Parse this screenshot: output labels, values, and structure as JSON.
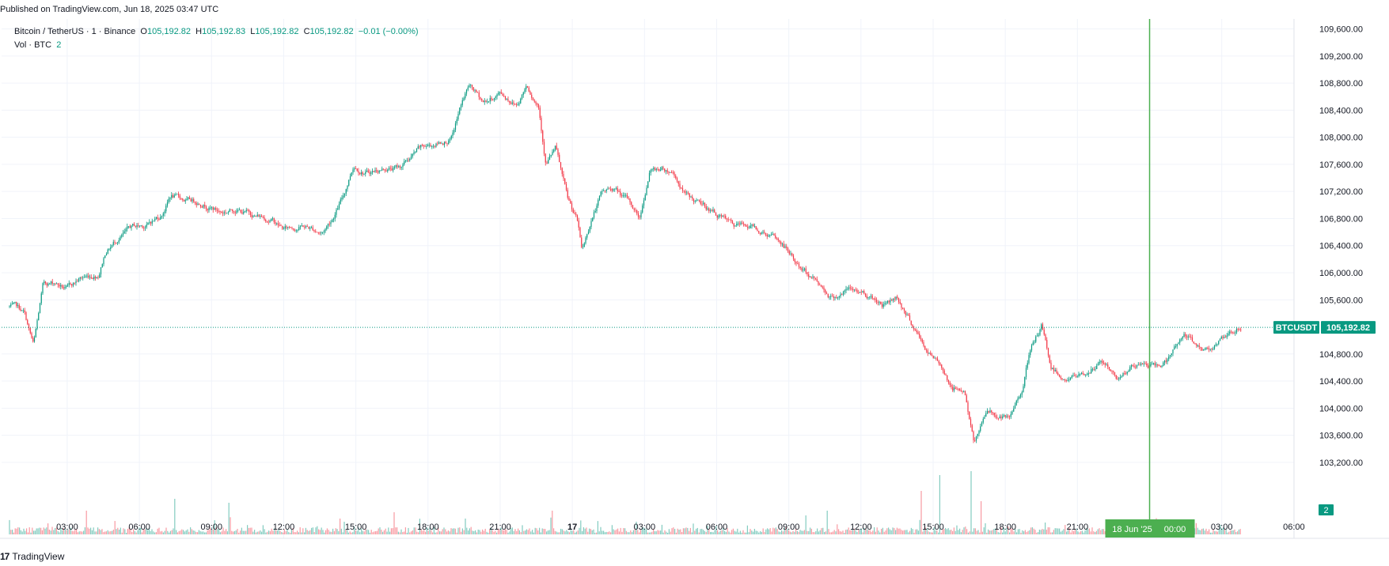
{
  "header": {
    "published": "Published on TradingView.com, Jun 18, 2025 03:47 UTC"
  },
  "legend": {
    "symbol": "Bitcoin / TetherUS · 1 · Binance",
    "o_label": "O",
    "o": "105,192.82",
    "h_label": "H",
    "h": "105,192.83",
    "l_label": "L",
    "l": "105,192.82",
    "c_label": "C",
    "c": "105,192.82",
    "change": "−0.01 (−0.00%)",
    "vol_label": "Vol · BTC",
    "vol": "2"
  },
  "footer": {
    "logo_text": "TradingView",
    "logo_mark": "17"
  },
  "colors": {
    "up": "#089981",
    "down": "#f23645",
    "marker": "#4caf50",
    "grid": "#f0f3fa",
    "text": "#131722"
  },
  "chart_data": {
    "type": "candlestick",
    "symbol_label": "BTCUSDT",
    "last_price": 105192.82,
    "last_price_label": "105,192.82",
    "volume_label": "2",
    "ylim": [
      103000,
      109700
    ],
    "y_ticks": [
      "109,600.00",
      "109,200.00",
      "108,800.00",
      "108,400.00",
      "108,000.00",
      "107,600.00",
      "107,200.00",
      "106,800.00",
      "106,400.00",
      "106,000.00",
      "105,600.00",
      "104,800.00",
      "104,400.00",
      "104,000.00",
      "103,600.00",
      "103,200.00"
    ],
    "x_ticks": [
      {
        "label": "03:00",
        "h": 3
      },
      {
        "label": "06:00",
        "h": 6
      },
      {
        "label": "09:00",
        "h": 9
      },
      {
        "label": "12:00",
        "h": 12
      },
      {
        "label": "15:00",
        "h": 15
      },
      {
        "label": "18:00",
        "h": 18
      },
      {
        "label": "21:00",
        "h": 21
      },
      {
        "label": "17",
        "h": 24
      },
      {
        "label": "03:00",
        "h": 27
      },
      {
        "label": "06:00",
        "h": 30
      },
      {
        "label": "09:00",
        "h": 33
      },
      {
        "label": "12:00",
        "h": 36
      },
      {
        "label": "15:00",
        "h": 39
      },
      {
        "label": "18:00",
        "h": 42
      },
      {
        "label": "21:00",
        "h": 45
      },
      {
        "label": "03:00",
        "h": 51
      },
      {
        "label": "06:00",
        "h": 54
      }
    ],
    "marker": {
      "h": 48,
      "date_label": "18 Jun '25",
      "time_label": "00:00"
    },
    "x_range_hours": [
      0.6,
      51.8
    ],
    "price_path": [
      [
        0.6,
        105500
      ],
      [
        1.2,
        105400
      ],
      [
        1.6,
        104900
      ],
      [
        2.0,
        105800
      ],
      [
        2.5,
        105850
      ],
      [
        3.0,
        105750
      ],
      [
        3.5,
        105900
      ],
      [
        4.3,
        106000
      ],
      [
        4.6,
        106350
      ],
      [
        5.2,
        106550
      ],
      [
        5.7,
        106650
      ],
      [
        6.3,
        106700
      ],
      [
        6.9,
        106850
      ],
      [
        7.3,
        107150
      ],
      [
        8.0,
        107050
      ],
      [
        8.7,
        107050
      ],
      [
        9.4,
        106900
      ],
      [
        10.0,
        106950
      ],
      [
        10.8,
        106850
      ],
      [
        11.5,
        106800
      ],
      [
        12.0,
        106650
      ],
      [
        12.8,
        106700
      ],
      [
        13.6,
        106600
      ],
      [
        14.0,
        106800
      ],
      [
        14.5,
        107150
      ],
      [
        14.9,
        107600
      ],
      [
        15.5,
        107500
      ],
      [
        16.2,
        107550
      ],
      [
        16.8,
        107550
      ],
      [
        17.6,
        107800
      ],
      [
        18.3,
        107900
      ],
      [
        19.0,
        108000
      ],
      [
        19.4,
        108500
      ],
      [
        19.7,
        108750
      ],
      [
        20.3,
        108500
      ],
      [
        21.0,
        108650
      ],
      [
        21.7,
        108500
      ],
      [
        22.1,
        108800
      ],
      [
        22.6,
        108500
      ],
      [
        22.9,
        107650
      ],
      [
        23.3,
        107850
      ],
      [
        23.8,
        107050
      ],
      [
        24.2,
        106750
      ],
      [
        24.4,
        106300
      ],
      [
        24.8,
        106800
      ],
      [
        25.2,
        107150
      ],
      [
        25.7,
        107250
      ],
      [
        26.3,
        107050
      ],
      [
        26.8,
        106800
      ],
      [
        27.2,
        107500
      ],
      [
        27.7,
        107550
      ],
      [
        28.2,
        107500
      ],
      [
        28.7,
        107150
      ],
      [
        29.3,
        107000
      ],
      [
        30.1,
        106850
      ],
      [
        30.7,
        106650
      ],
      [
        31.5,
        106700
      ],
      [
        32.3,
        106550
      ],
      [
        32.9,
        106350
      ],
      [
        33.5,
        106050
      ],
      [
        34.1,
        105900
      ],
      [
        34.8,
        105650
      ],
      [
        35.5,
        105750
      ],
      [
        36.2,
        105700
      ],
      [
        36.9,
        105550
      ],
      [
        37.5,
        105650
      ],
      [
        38.2,
        105200
      ],
      [
        38.8,
        104800
      ],
      [
        39.4,
        104600
      ],
      [
        39.8,
        104300
      ],
      [
        40.3,
        104300
      ],
      [
        40.7,
        103450
      ],
      [
        41.2,
        104000
      ],
      [
        41.7,
        103900
      ],
      [
        42.2,
        103800
      ],
      [
        42.7,
        104300
      ],
      [
        43.0,
        104800
      ],
      [
        43.5,
        105200
      ],
      [
        43.9,
        104600
      ],
      [
        44.5,
        104450
      ],
      [
        45.3,
        104500
      ],
      [
        46.0,
        104700
      ],
      [
        46.6,
        104450
      ],
      [
        47.2,
        104600
      ],
      [
        47.8,
        104650
      ],
      [
        48.3,
        104600
      ],
      [
        48.9,
        104750
      ],
      [
        49.4,
        105100
      ],
      [
        49.8,
        104950
      ],
      [
        50.3,
        104850
      ],
      [
        50.8,
        105000
      ],
      [
        51.4,
        105050
      ],
      [
        51.8,
        105190
      ]
    ],
    "volume_spikes": [
      [
        3.8,
        30
      ],
      [
        7.5,
        45
      ],
      [
        9.7,
        40
      ],
      [
        14.4,
        20
      ],
      [
        16.6,
        28
      ],
      [
        19.6,
        20
      ],
      [
        23.2,
        30
      ],
      [
        33.7,
        24
      ],
      [
        34.6,
        30
      ],
      [
        38.5,
        55
      ],
      [
        39.3,
        75
      ],
      [
        40.6,
        80
      ],
      [
        41.0,
        42
      ],
      [
        43.7,
        15
      ],
      [
        44.5,
        12
      ]
    ]
  }
}
